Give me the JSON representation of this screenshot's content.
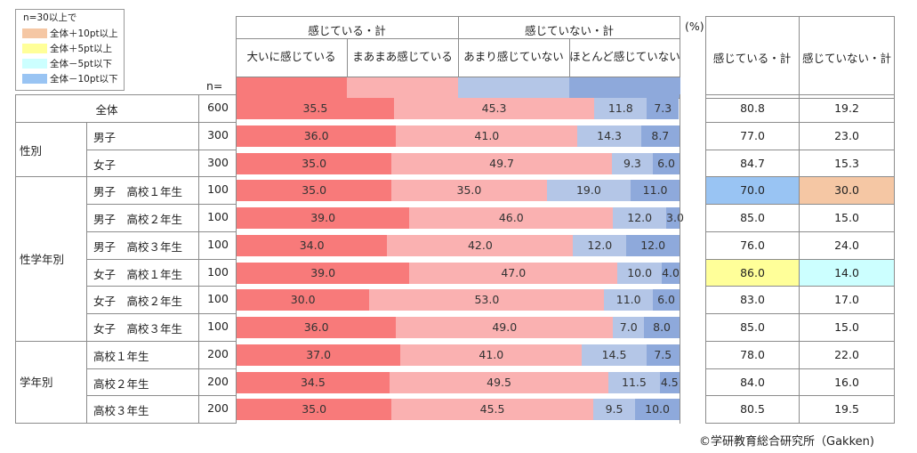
{
  "legend": {
    "title": "n=30以上で",
    "items": [
      {
        "label": "全体＋10pt以上",
        "color": "#f5c7a4"
      },
      {
        "label": "全体＋5pt以上",
        "color": "#ffff99"
      },
      {
        "label": "全体－5pt以下",
        "color": "#ccffff"
      },
      {
        "label": "全体－10pt以下",
        "color": "#99c4f3"
      }
    ]
  },
  "group_headers": {
    "felt": "感じている・計",
    "not_felt": "感じていない・計"
  },
  "n_label": "n=",
  "percent_unit": "(%)",
  "right_headers": [
    "感じている・計",
    "感じていない・計"
  ],
  "copyright": "©学研教育総合研究所（Gakken)",
  "chart_data": {
    "type": "bar",
    "stacked": true,
    "orientation": "horizontal",
    "xlim": [
      0,
      100
    ],
    "series": [
      {
        "name": "大いに感じている",
        "color": "#f87a7a",
        "values": [
          35.5,
          36.0,
          35.0,
          35.0,
          39.0,
          34.0,
          39.0,
          30.0,
          36.0,
          37.0,
          34.5,
          35.0
        ]
      },
      {
        "name": "まあまあ感じている",
        "color": "#fab1b1",
        "values": [
          45.3,
          41.0,
          49.7,
          35.0,
          46.0,
          42.0,
          47.0,
          53.0,
          49.0,
          41.0,
          49.5,
          45.5
        ]
      },
      {
        "name": "あまり感じていない",
        "color": "#b4c6e7",
        "values": [
          11.8,
          14.3,
          9.3,
          19.0,
          12.0,
          12.0,
          10.0,
          11.0,
          7.0,
          14.5,
          11.5,
          9.5
        ]
      },
      {
        "name": "ほとんど感じていない",
        "color": "#8ea9db",
        "values": [
          7.3,
          8.7,
          6.0,
          11.0,
          3.0,
          12.0,
          4.0,
          6.0,
          8.0,
          7.5,
          4.5,
          10.0
        ]
      }
    ],
    "value_labels": [
      [
        "35.5",
        "45.3",
        "11.8",
        "7.3"
      ],
      [
        "36.0",
        "41.0",
        "14.3",
        "8.7"
      ],
      [
        "35.0",
        "49.7",
        "9.3",
        "6.0"
      ],
      [
        "35.0",
        "35.0",
        "19.0",
        "11.0"
      ],
      [
        "39.0",
        "46.0",
        "12.0",
        "3.0"
      ],
      [
        "34.0",
        "42.0",
        "12.0",
        "12.0"
      ],
      [
        "39.0",
        "47.0",
        "10.0",
        "4.0"
      ],
      [
        "30.0",
        "53.0",
        "11.0",
        "6.0"
      ],
      [
        "36.0",
        "49.0",
        "7.0",
        "8.0"
      ],
      [
        "37.0",
        "41.0",
        "14.5",
        "7.5"
      ],
      [
        "34.5",
        "49.5",
        "11.5",
        "4.5"
      ],
      [
        "35.0",
        "45.5",
        "9.5",
        "10.0"
      ]
    ],
    "rows": [
      {
        "group": "",
        "label": "全体",
        "n": "600",
        "felt_total": "80.8",
        "not_felt_total": "19.2",
        "felt_hl": null,
        "not_felt_hl": null
      },
      {
        "group": "性別",
        "label": "男子",
        "n": "300",
        "felt_total": "77.0",
        "not_felt_total": "23.0",
        "felt_hl": null,
        "not_felt_hl": null
      },
      {
        "group": "",
        "label": "女子",
        "n": "300",
        "felt_total": "84.7",
        "not_felt_total": "15.3",
        "felt_hl": null,
        "not_felt_hl": null
      },
      {
        "group": "性学年別",
        "label": "男子　高校１年生",
        "n": "100",
        "felt_total": "70.0",
        "not_felt_total": "30.0",
        "felt_hl": "#99c4f3",
        "not_felt_hl": "#f5c7a4"
      },
      {
        "group": "",
        "label": "男子　高校２年生",
        "n": "100",
        "felt_total": "85.0",
        "not_felt_total": "15.0",
        "felt_hl": null,
        "not_felt_hl": null
      },
      {
        "group": "",
        "label": "男子　高校３年生",
        "n": "100",
        "felt_total": "76.0",
        "not_felt_total": "24.0",
        "felt_hl": null,
        "not_felt_hl": null
      },
      {
        "group": "",
        "label": "女子　高校１年生",
        "n": "100",
        "felt_total": "86.0",
        "not_felt_total": "14.0",
        "felt_hl": "#ffff99",
        "not_felt_hl": "#ccffff"
      },
      {
        "group": "",
        "label": "女子　高校２年生",
        "n": "100",
        "felt_total": "83.0",
        "not_felt_total": "17.0",
        "felt_hl": null,
        "not_felt_hl": null
      },
      {
        "group": "",
        "label": "女子　高校３年生",
        "n": "100",
        "felt_total": "85.0",
        "not_felt_total": "15.0",
        "felt_hl": null,
        "not_felt_hl": null
      },
      {
        "group": "学年別",
        "label": "高校１年生",
        "n": "200",
        "felt_total": "78.0",
        "not_felt_total": "22.0",
        "felt_hl": null,
        "not_felt_hl": null
      },
      {
        "group": "",
        "label": "高校２年生",
        "n": "200",
        "felt_total": "84.0",
        "not_felt_total": "16.0",
        "felt_hl": null,
        "not_felt_hl": null
      },
      {
        "group": "",
        "label": "高校３年生",
        "n": "200",
        "felt_total": "80.5",
        "not_felt_total": "19.5",
        "felt_hl": null,
        "not_felt_hl": null
      }
    ]
  }
}
